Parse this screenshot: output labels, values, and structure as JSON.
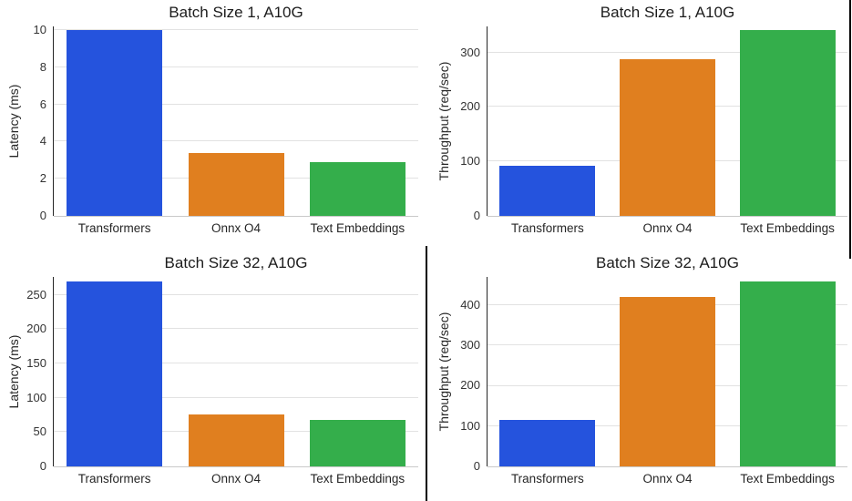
{
  "figure": {
    "background": "#ffffff",
    "artifacts": {
      "right_edge_line_color": "#000000",
      "center_divider_line_color": "#000000"
    }
  },
  "palette": {
    "bar_colors": [
      "#2553dd",
      "#e07f1f",
      "#34ae4b"
    ],
    "gridline": "#e2e2e2",
    "y_axis_spine": "#262626",
    "x_axis_spine": "#c9c9c9",
    "tick_text": "#333333",
    "title_text": "#1c1c1c"
  },
  "chart_data": [
    {
      "type": "bar",
      "position": "top-left",
      "title": "Batch Size 1, A10G",
      "xlabel": "",
      "ylabel": "Latency (ms)",
      "categories": [
        "Transformers",
        "Onnx O4",
        "Text Embeddings"
      ],
      "values": [
        10,
        3.4,
        2.9
      ],
      "yticks": [
        0,
        2,
        4,
        6,
        8,
        10
      ],
      "ylim": [
        0,
        10.2
      ],
      "grid": true,
      "legend_position": "none"
    },
    {
      "type": "bar",
      "position": "top-right",
      "title": "Batch Size 1, A10G",
      "xlabel": "",
      "ylabel": "Throughput (req/sec)",
      "categories": [
        "Transformers",
        "Onnx O4",
        "Text Embeddings"
      ],
      "values": [
        92,
        288,
        341
      ],
      "yticks": [
        0,
        100,
        200,
        300
      ],
      "ylim": [
        0,
        348
      ],
      "grid": true,
      "legend_position": "none"
    },
    {
      "type": "bar",
      "position": "bottom-left",
      "title": "Batch Size 32, A10G",
      "xlabel": "",
      "ylabel": "Latency (ms)",
      "categories": [
        "Transformers",
        "Onnx O4",
        "Text Embeddings"
      ],
      "values": [
        270,
        75,
        68
      ],
      "yticks": [
        0,
        50,
        100,
        150,
        200,
        250
      ],
      "ylim": [
        0,
        276
      ],
      "grid": true,
      "legend_position": "none"
    },
    {
      "type": "bar",
      "position": "bottom-right",
      "title": "Batch Size 32, A10G",
      "xlabel": "",
      "ylabel": "Throughput (req/sec)",
      "categories": [
        "Transformers",
        "Onnx O4",
        "Text Embeddings"
      ],
      "values": [
        115,
        420,
        458
      ],
      "yticks": [
        0,
        100,
        200,
        300,
        400
      ],
      "ylim": [
        0,
        470
      ],
      "grid": true,
      "legend_position": "none"
    }
  ]
}
